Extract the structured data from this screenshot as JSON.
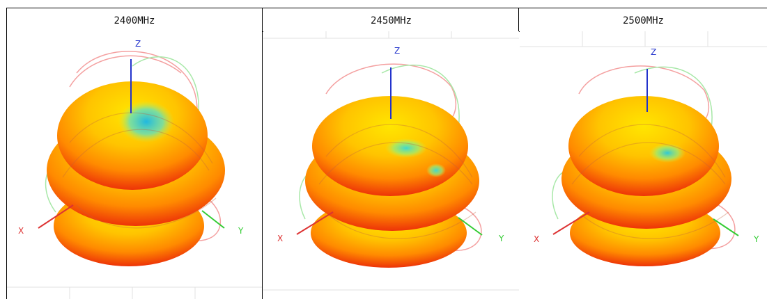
{
  "columns": [
    {
      "frequency": "2400MHz",
      "axes": {
        "z": "Z",
        "x": "X",
        "y": "Y"
      }
    },
    {
      "frequency": "2450MHz",
      "axes": {
        "z": "Z",
        "x": "X",
        "y": "Y"
      }
    },
    {
      "frequency": "2500MHz",
      "axes": {
        "z": "Z",
        "x": "X",
        "y": "Y"
      }
    }
  ],
  "colors": {
    "z_axis": "#2233cc",
    "x_axis": "#dd3333",
    "y_axis": "#33cc33",
    "pattern_hot": "#e81a0a",
    "pattern_mid": "#ff8a00",
    "pattern_warm": "#ffd000",
    "pattern_cool": "#30c8e8",
    "grid": "#d8d8d8"
  }
}
